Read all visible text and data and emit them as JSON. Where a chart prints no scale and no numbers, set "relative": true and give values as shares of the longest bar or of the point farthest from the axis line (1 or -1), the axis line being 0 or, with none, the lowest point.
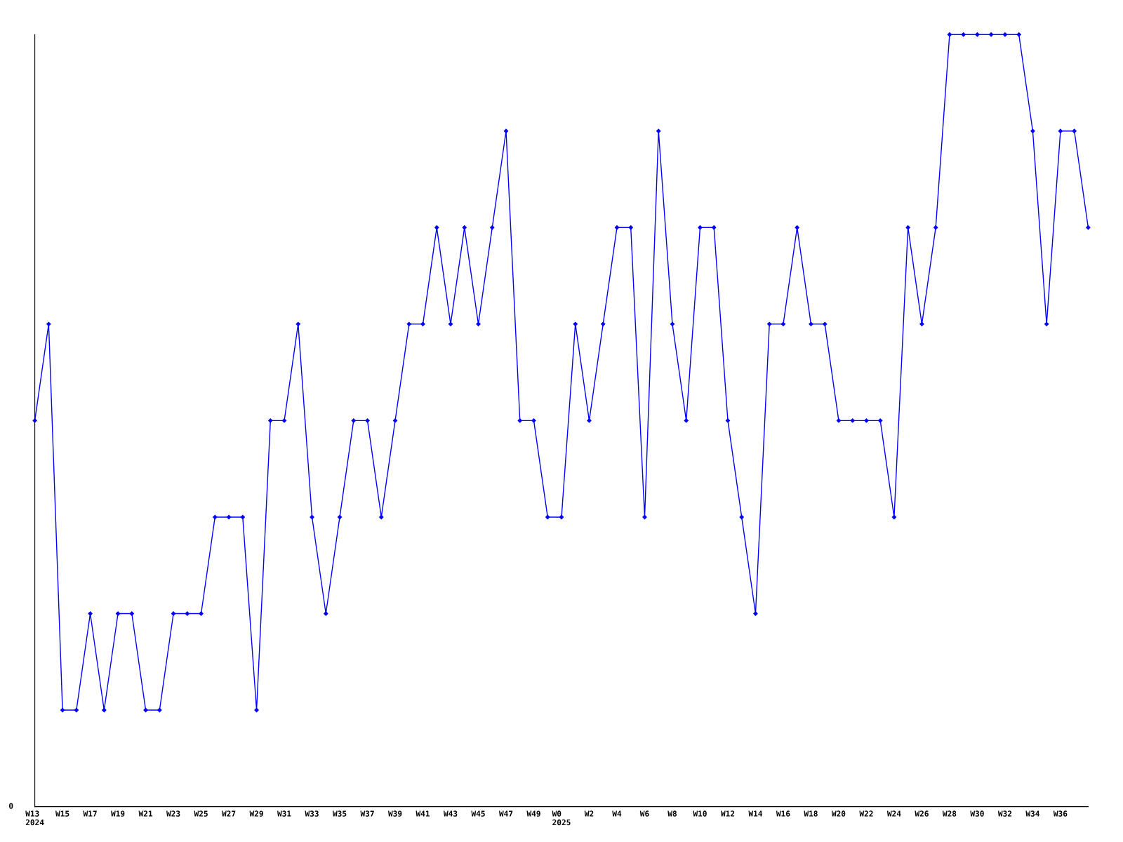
{
  "chart_data": {
    "type": "line",
    "relative": true,
    "categories": [
      "W13\n2024",
      null,
      "W15",
      null,
      "W17",
      null,
      "W19",
      null,
      "W21",
      null,
      "W23",
      null,
      "W25",
      null,
      "W27",
      null,
      "W29",
      null,
      "W31",
      null,
      "W33",
      null,
      "W35",
      null,
      "W37",
      null,
      "W39",
      null,
      "W41",
      null,
      "W43",
      null,
      "W45",
      null,
      "W47",
      null,
      "W49",
      null,
      "W0\n2025",
      null,
      "W2",
      null,
      "W4",
      null,
      "W6",
      null,
      "W8",
      null,
      "W10",
      null,
      "W12",
      null,
      "W14",
      null,
      "W16",
      null,
      "W18",
      null,
      "W20",
      null,
      "W22",
      null,
      "W24",
      null,
      "W26",
      null,
      "W28",
      null,
      "W30",
      null,
      "W32",
      null,
      "W34",
      null,
      "W36",
      null,
      null
    ],
    "series": [
      {
        "color": "#0000ff",
        "values": [
          0.5,
          0.625,
          0.125,
          0.125,
          0.25,
          0.125,
          0.25,
          0.25,
          0.125,
          0.125,
          0.25,
          0.25,
          0.25,
          0.375,
          0.375,
          0.375,
          0.125,
          0.5,
          0.5,
          0.625,
          0.375,
          0.25,
          0.375,
          0.5,
          0.5,
          0.375,
          0.5,
          0.625,
          0.625,
          0.75,
          0.625,
          0.75,
          0.625,
          0.75,
          0.875,
          0.5,
          0.5,
          0.375,
          0.375,
          0.625,
          0.5,
          0.625,
          0.75,
          0.75,
          0.375,
          0.875,
          0.625,
          0.5,
          0.75,
          0.75,
          0.5,
          0.375,
          0.25,
          0.625,
          0.625,
          0.75,
          0.625,
          0.625,
          0.5,
          0.5,
          0.5,
          0.5,
          0.375,
          0.75,
          0.625,
          0.75,
          1,
          1,
          1,
          1,
          1,
          1,
          0.875,
          0.625,
          0.875,
          0.875,
          0.75
        ]
      }
    ],
    "annotations": [
      "0"
    ],
    "marker": "diamond",
    "line_style": "solid",
    "grid": false,
    "legend": false
  }
}
